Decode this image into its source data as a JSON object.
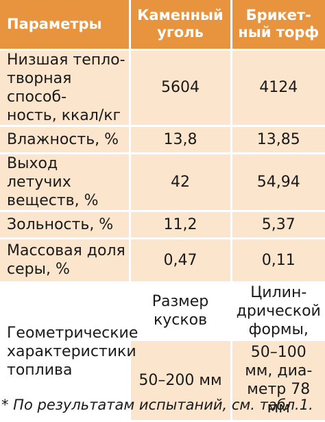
{
  "header": {
    "col1": "Параметры",
    "col2": [
      "Каменный",
      "уголь"
    ],
    "col3": [
      "Брикет-",
      "ный торф"
    ]
  },
  "rows": [
    {
      "label": [
        "Низшая тепло-",
        "творная способ-",
        "ность, ккал/кг"
      ],
      "coal": "5604",
      "peat": "4124"
    },
    {
      "label": [
        "Влажность, %"
      ],
      "coal": "13,8",
      "peat": "13,85"
    },
    {
      "label": [
        "Выход летучих",
        "веществ, %"
      ],
      "coal": "42",
      "peat": "54,94"
    },
    {
      "label": [
        "Зольность, %"
      ],
      "coal": "11,2",
      "peat": "5,37"
    },
    {
      "label": [
        "Массовая доля",
        "серы, %"
      ],
      "coal": "0,47",
      "peat": "0,11"
    }
  ],
  "geometry_row": {
    "label": [
      "Геометрические",
      "характеристики",
      "топлива"
    ],
    "coal_top": [
      "Размер",
      "кусков"
    ],
    "coal_bottom": "50–200 мм",
    "peat_top": [
      "Цилин-",
      "дрической",
      "формы,"
    ],
    "peat_bottom": [
      "50–100",
      "мм, диа-",
      "метр 78",
      "мм"
    ]
  },
  "footnote": "* По результатам испытаний, см. табл.1.",
  "colors": {
    "header_bg": "#e8933d",
    "cell_bg": "#fbe5cc"
  }
}
